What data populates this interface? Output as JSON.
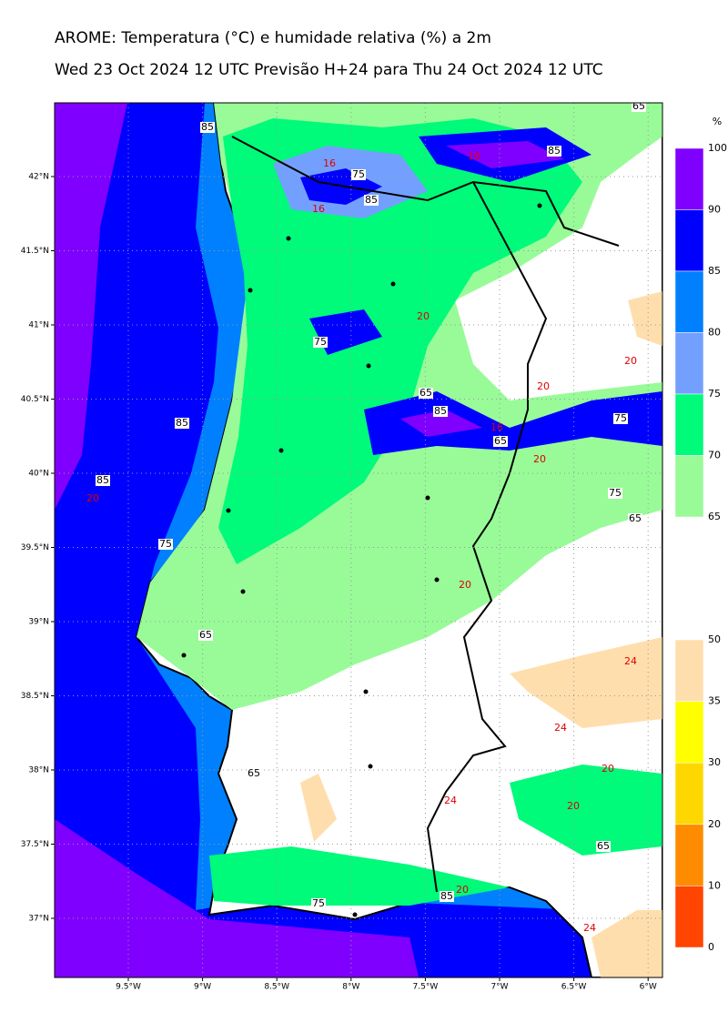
{
  "header": {
    "title": "AROME: Temperatura (°C) e humidade relativa (%) a 2m",
    "subtitle": "Wed 23 Oct 2024 12 UTC Previsão H+24 para Thu 24 Oct 2024 12 UTC"
  },
  "map": {
    "lon_labels": [
      "9.5°W",
      "9°W",
      "8.5°W",
      "8°W",
      "7.5°W",
      "7°W",
      "6.5°W",
      "6°W"
    ],
    "lat_labels": [
      "42°N",
      "41.5°N",
      "41°N",
      "40.5°N",
      "40°N",
      "39.5°N",
      "39°N",
      "38.5°N",
      "38°N",
      "37.5°N",
      "37°N"
    ],
    "humidity_contour_labels": [
      "85",
      "75",
      "85",
      "85",
      "75",
      "65",
      "85",
      "65",
      "75",
      "75",
      "65",
      "85",
      "85",
      "75",
      "65",
      "65",
      "65",
      "75",
      "85",
      "65"
    ],
    "temperature_contour_labels": [
      "16",
      "16",
      "16",
      "20",
      "20",
      "20",
      "16",
      "20",
      "20",
      "20",
      "24",
      "24",
      "20",
      "20",
      "24",
      "20",
      "24"
    ]
  },
  "colorbars": {
    "unit": "%",
    "humidity": {
      "ticks": [
        100,
        90,
        85,
        80,
        75,
        70,
        65
      ],
      "colors": [
        "#8000ff",
        "#0000ff",
        "#0080ff",
        "#73a0ff",
        "#00fa7a",
        "#98fb98"
      ]
    },
    "temperature": {
      "ticks": [
        50,
        35,
        30,
        20,
        10,
        0
      ],
      "colors": [
        "#ffdead",
        "#ffff00",
        "#ffd700",
        "#ff8c00",
        "#ff4500"
      ]
    }
  }
}
